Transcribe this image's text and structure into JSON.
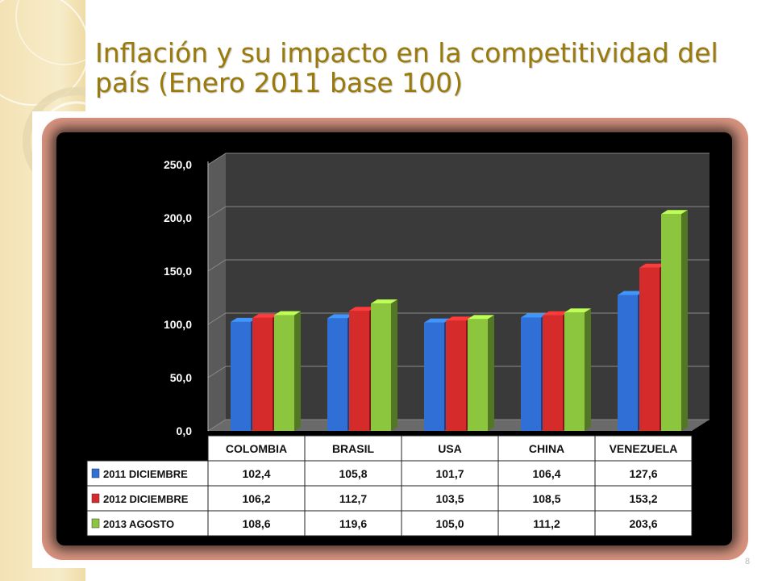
{
  "slide": {
    "title": "Inflación y su impacto en la  competitividad del país (Enero 2011 base 100)",
    "page_number": "8"
  },
  "colors": {
    "title": "#9a7a0a",
    "series": [
      "#2f6fd6",
      "#d62b2b",
      "#8cc63f"
    ],
    "panel": "#000000",
    "glow": "#d89a86"
  },
  "chart_data": {
    "type": "bar",
    "title": "",
    "xlabel": "",
    "ylabel": "",
    "ylim": [
      0,
      250
    ],
    "yticks": [
      "0,0",
      "50,0",
      "100,0",
      "150,0",
      "200,0",
      "250,0"
    ],
    "grid": true,
    "categories": [
      "COLOMBIA",
      "BRASIL",
      "USA",
      "CHINA",
      "VENEZUELA"
    ],
    "series": [
      {
        "name": "2011 DICIEMBRE",
        "values": [
          102.4,
          105.8,
          101.7,
          106.4,
          127.6
        ],
        "labels": [
          "102,4",
          "105,8",
          "101,7",
          "106,4",
          "127,6"
        ]
      },
      {
        "name": "2012 DICIEMBRE",
        "values": [
          106.2,
          112.7,
          103.5,
          108.5,
          153.2
        ],
        "labels": [
          "106,2",
          "112,7",
          "103,5",
          "108,5",
          "153,2"
        ]
      },
      {
        "name": "2013 AGOSTO",
        "values": [
          108.6,
          119.6,
          105.0,
          111.2,
          203.6
        ],
        "labels": [
          "108,6",
          "119,6",
          "105,0",
          "111,2",
          "203,6"
        ]
      }
    ]
  }
}
